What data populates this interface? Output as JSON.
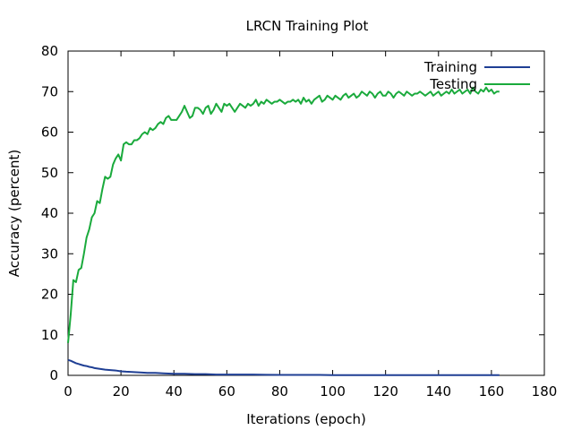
{
  "chart_data": {
    "type": "line",
    "title": "LRCN Training Plot",
    "xlabel": "Iterations (epoch)",
    "ylabel": "Accuracy (percent)",
    "xlim": [
      0,
      180
    ],
    "ylim": [
      0,
      80
    ],
    "xticks": [
      0,
      20,
      40,
      60,
      80,
      100,
      120,
      140,
      160,
      180
    ],
    "yticks": [
      0,
      10,
      20,
      30,
      40,
      50,
      60,
      70,
      80
    ],
    "grid": false,
    "legend_position": "top-right",
    "series": [
      {
        "name": "Training",
        "color": "#1f3f94",
        "points": [
          [
            0,
            3.8
          ],
          [
            1,
            3.6
          ],
          [
            2,
            3.3
          ],
          [
            3,
            3.0
          ],
          [
            4,
            2.8
          ],
          [
            5,
            2.6
          ],
          [
            6,
            2.4
          ],
          [
            7,
            2.3
          ],
          [
            8,
            2.1
          ],
          [
            9,
            2.0
          ],
          [
            10,
            1.8
          ],
          [
            12,
            1.6
          ],
          [
            14,
            1.4
          ],
          [
            16,
            1.3
          ],
          [
            18,
            1.2
          ],
          [
            20,
            1.0
          ],
          [
            22,
            0.9
          ],
          [
            25,
            0.8
          ],
          [
            28,
            0.7
          ],
          [
            30,
            0.6
          ],
          [
            33,
            0.6
          ],
          [
            36,
            0.5
          ],
          [
            40,
            0.4
          ],
          [
            44,
            0.4
          ],
          [
            48,
            0.3
          ],
          [
            52,
            0.3
          ],
          [
            56,
            0.2
          ],
          [
            60,
            0.2
          ],
          [
            65,
            0.2
          ],
          [
            70,
            0.2
          ],
          [
            75,
            0.15
          ],
          [
            80,
            0.1
          ],
          [
            85,
            0.1
          ],
          [
            90,
            0.1
          ],
          [
            95,
            0.1
          ],
          [
            100,
            0.05
          ],
          [
            110,
            0.05
          ],
          [
            120,
            0.05
          ],
          [
            130,
            0.05
          ],
          [
            140,
            0.05
          ],
          [
            150,
            0.05
          ],
          [
            160,
            0.05
          ],
          [
            163,
            0.05
          ]
        ]
      },
      {
        "name": "Testing",
        "color": "#1aaa3c",
        "points": [
          [
            0,
            8
          ],
          [
            1,
            15
          ],
          [
            2,
            23.5
          ],
          [
            3,
            23
          ],
          [
            4,
            26
          ],
          [
            5,
            26.5
          ],
          [
            6,
            30
          ],
          [
            7,
            34
          ],
          [
            8,
            36
          ],
          [
            9,
            39
          ],
          [
            10,
            40
          ],
          [
            11,
            43
          ],
          [
            12,
            42.5
          ],
          [
            13,
            46
          ],
          [
            14,
            49
          ],
          [
            15,
            48.5
          ],
          [
            16,
            49
          ],
          [
            17,
            52
          ],
          [
            18,
            53.5
          ],
          [
            19,
            54.5
          ],
          [
            20,
            53
          ],
          [
            21,
            57
          ],
          [
            22,
            57.5
          ],
          [
            23,
            57
          ],
          [
            24,
            57
          ],
          [
            25,
            58
          ],
          [
            26,
            58
          ],
          [
            27,
            58.5
          ],
          [
            28,
            59.5
          ],
          [
            29,
            60
          ],
          [
            30,
            59.5
          ],
          [
            31,
            61
          ],
          [
            32,
            60.5
          ],
          [
            33,
            61
          ],
          [
            34,
            62
          ],
          [
            35,
            62.5
          ],
          [
            36,
            62
          ],
          [
            37,
            63.5
          ],
          [
            38,
            64
          ],
          [
            39,
            63
          ],
          [
            40,
            63
          ],
          [
            41,
            63
          ],
          [
            42,
            64
          ],
          [
            43,
            65
          ],
          [
            44,
            66.5
          ],
          [
            45,
            65
          ],
          [
            46,
            63.5
          ],
          [
            47,
            64
          ],
          [
            48,
            66
          ],
          [
            49,
            66
          ],
          [
            50,
            65.5
          ],
          [
            51,
            64.5
          ],
          [
            52,
            66
          ],
          [
            53,
            66.5
          ],
          [
            54,
            64.5
          ],
          [
            55,
            65.5
          ],
          [
            56,
            67
          ],
          [
            57,
            66
          ],
          [
            58,
            65
          ],
          [
            59,
            67
          ],
          [
            60,
            66.5
          ],
          [
            61,
            67
          ],
          [
            62,
            66
          ],
          [
            63,
            65
          ],
          [
            64,
            66
          ],
          [
            65,
            67
          ],
          [
            66,
            66.5
          ],
          [
            67,
            66
          ],
          [
            68,
            67
          ],
          [
            69,
            66.5
          ],
          [
            70,
            67
          ],
          [
            71,
            68
          ],
          [
            72,
            66.5
          ],
          [
            73,
            67.5
          ],
          [
            74,
            67
          ],
          [
            75,
            68
          ],
          [
            76,
            67.5
          ],
          [
            77,
            67
          ],
          [
            78,
            67.5
          ],
          [
            79,
            67.5
          ],
          [
            80,
            68
          ],
          [
            81,
            67.5
          ],
          [
            82,
            67
          ],
          [
            83,
            67.5
          ],
          [
            84,
            67.5
          ],
          [
            85,
            68
          ],
          [
            86,
            67.5
          ],
          [
            87,
            68
          ],
          [
            88,
            67
          ],
          [
            89,
            68.5
          ],
          [
            90,
            67.5
          ],
          [
            91,
            68
          ],
          [
            92,
            67
          ],
          [
            93,
            68
          ],
          [
            94,
            68.5
          ],
          [
            95,
            69
          ],
          [
            96,
            67.5
          ],
          [
            97,
            68
          ],
          [
            98,
            69
          ],
          [
            99,
            68.5
          ],
          [
            100,
            68
          ],
          [
            101,
            69
          ],
          [
            102,
            68.5
          ],
          [
            103,
            68
          ],
          [
            104,
            69
          ],
          [
            105,
            69.5
          ],
          [
            106,
            68.5
          ],
          [
            107,
            69
          ],
          [
            108,
            69.5
          ],
          [
            109,
            68.5
          ],
          [
            110,
            69
          ],
          [
            111,
            70
          ],
          [
            112,
            69.5
          ],
          [
            113,
            69
          ],
          [
            114,
            70
          ],
          [
            115,
            69.5
          ],
          [
            116,
            68.5
          ],
          [
            117,
            69.5
          ],
          [
            118,
            70
          ],
          [
            119,
            69
          ],
          [
            120,
            69
          ],
          [
            121,
            70
          ],
          [
            122,
            69.5
          ],
          [
            123,
            68.5
          ],
          [
            124,
            69.5
          ],
          [
            125,
            70
          ],
          [
            126,
            69.5
          ],
          [
            127,
            69
          ],
          [
            128,
            70
          ],
          [
            129,
            69.5
          ],
          [
            130,
            69
          ],
          [
            131,
            69.5
          ],
          [
            132,
            69.5
          ],
          [
            133,
            70
          ],
          [
            134,
            69.5
          ],
          [
            135,
            69
          ],
          [
            136,
            69.5
          ],
          [
            137,
            70
          ],
          [
            138,
            69
          ],
          [
            139,
            69.5
          ],
          [
            140,
            70
          ],
          [
            141,
            69
          ],
          [
            142,
            69.5
          ],
          [
            143,
            70
          ],
          [
            144,
            69.5
          ],
          [
            145,
            70.5
          ],
          [
            146,
            69.5
          ],
          [
            147,
            70
          ],
          [
            148,
            70.5
          ],
          [
            149,
            69.5
          ],
          [
            150,
            70
          ],
          [
            151,
            70.5
          ],
          [
            152,
            69.5
          ],
          [
            153,
            71
          ],
          [
            154,
            70
          ],
          [
            155,
            69.5
          ],
          [
            156,
            70.5
          ],
          [
            157,
            70
          ],
          [
            158,
            71
          ],
          [
            159,
            70
          ],
          [
            160,
            70.5
          ],
          [
            161,
            69.5
          ],
          [
            162,
            70
          ],
          [
            163,
            70
          ]
        ]
      }
    ]
  }
}
